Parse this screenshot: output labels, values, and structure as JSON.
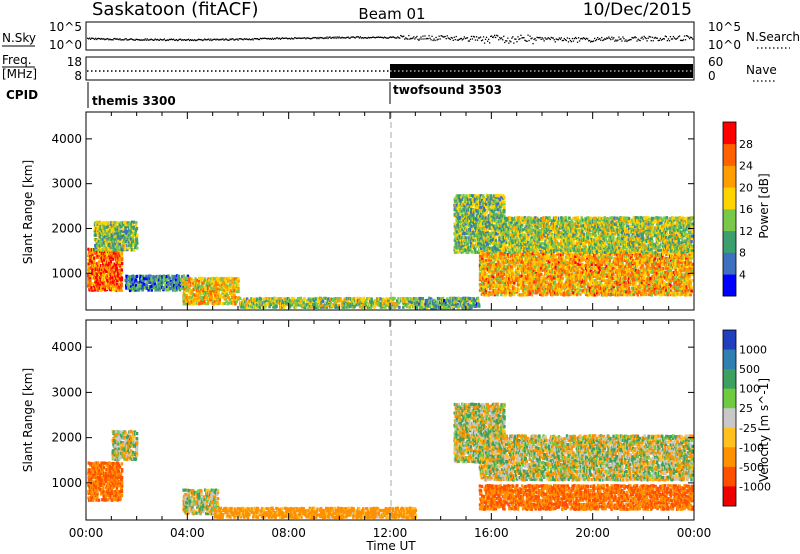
{
  "header": {
    "station": "Saskatoon (fitACF)",
    "beam": "Beam 01",
    "date": "10/Dec/2015"
  },
  "status_panels": {
    "nsky": {
      "left_label": "N.Sky",
      "ticks": [
        "10^5",
        "10^0"
      ],
      "right_ticks": [
        "10^5",
        "10^0"
      ],
      "right_label": "N.Search"
    },
    "freq": {
      "left_label_1": "Freq.",
      "left_label_2": "[MHz]",
      "ticks": [
        "18",
        "8"
      ],
      "right_ticks": [
        "60",
        "0"
      ],
      "right_label": "Nave"
    },
    "cpid": {
      "label": "CPID",
      "modes": [
        {
          "name": "themis 3300",
          "start_hour": 0,
          "end_hour": 12
        },
        {
          "name": "twofsound 3503",
          "start_hour": 12,
          "end_hour": 24
        }
      ]
    }
  },
  "chart_data": [
    {
      "type": "heatmap",
      "title": "",
      "xlabel": "Time UT",
      "ylabel": "Slant Range [km]",
      "xlim": [
        0,
        24
      ],
      "ylim": [
        180,
        4600
      ],
      "y_ticks": [
        1000,
        2000,
        3000,
        4000
      ],
      "x_tick_labels": [
        "00:00",
        "04:00",
        "08:00",
        "12:00",
        "16:00",
        "20:00",
        "00:00"
      ],
      "colorbar": {
        "label": "Power [dB]",
        "ticks": [
          "4",
          "8",
          "12",
          "16",
          "20",
          "24",
          "28"
        ],
        "range": [
          0,
          30
        ],
        "colors": [
          "#0000ff",
          "#3f6fbf",
          "#3c9f6e",
          "#79c84a",
          "#ffd400",
          "#ff9e00",
          "#ff6000",
          "#ff0000"
        ]
      },
      "echo_regions": [
        {
          "t": [
            0.0,
            1.4
          ],
          "r": [
            650,
            1600
          ],
          "dB": 24
        },
        {
          "t": [
            0.3,
            2.0
          ],
          "r": [
            1550,
            2200
          ],
          "dB": 12
        },
        {
          "t": [
            1.5,
            4.0
          ],
          "r": [
            650,
            1000
          ],
          "dB": 8
        },
        {
          "t": [
            3.8,
            6.0
          ],
          "r": [
            350,
            950
          ],
          "dB": 18
        },
        {
          "t": [
            6.0,
            13.0
          ],
          "r": [
            270,
            500
          ],
          "dB": 14
        },
        {
          "t": [
            13.0,
            15.5
          ],
          "r": [
            250,
            500
          ],
          "dB": 10
        },
        {
          "t": [
            14.5,
            16.5
          ],
          "r": [
            1500,
            2800
          ],
          "dB": 12
        },
        {
          "t": [
            15.5,
            24.0
          ],
          "r": [
            550,
            1500
          ],
          "dB": 20
        },
        {
          "t": [
            16.5,
            24.0
          ],
          "r": [
            1500,
            2300
          ],
          "dB": 14
        }
      ]
    },
    {
      "type": "heatmap",
      "title": "",
      "xlabel": "Time UT",
      "ylabel": "Slant Range [km]",
      "xlim": [
        0,
        24
      ],
      "ylim": [
        180,
        4600
      ],
      "y_ticks": [
        1000,
        2000,
        3000,
        4000
      ],
      "x_tick_labels": [
        "00:00",
        "04:00",
        "08:00",
        "12:00",
        "16:00",
        "20:00",
        "00:00"
      ],
      "colorbar": {
        "label": "Velocity [m s^-1]",
        "ticks": [
          "1000",
          "500",
          "100",
          "25",
          "-25",
          "-100",
          "-500",
          "-1000"
        ],
        "colors": [
          "#1f3fbf",
          "#2f7fb0",
          "#3ca060",
          "#6fcc40",
          "#c8c8c8",
          "#ffc020",
          "#ff9000",
          "#ff5000",
          "#ee0000"
        ]
      },
      "echo_regions": [
        {
          "t": [
            0.0,
            1.4
          ],
          "r": [
            650,
            1500
          ],
          "v": -300
        },
        {
          "t": [
            1.0,
            2.0
          ],
          "r": [
            1550,
            2200
          ],
          "v": 0
        },
        {
          "t": [
            3.8,
            5.2
          ],
          "r": [
            350,
            900
          ],
          "v": 0
        },
        {
          "t": [
            5.0,
            13.0
          ],
          "r": [
            270,
            500
          ],
          "v": -150
        },
        {
          "t": [
            14.5,
            16.5
          ],
          "r": [
            1500,
            2800
          ],
          "v": 0
        },
        {
          "t": [
            15.5,
            24.0
          ],
          "r": [
            1100,
            2100
          ],
          "v": 0
        },
        {
          "t": [
            15.5,
            24.0
          ],
          "r": [
            450,
            1000
          ],
          "v": -300
        }
      ]
    }
  ]
}
